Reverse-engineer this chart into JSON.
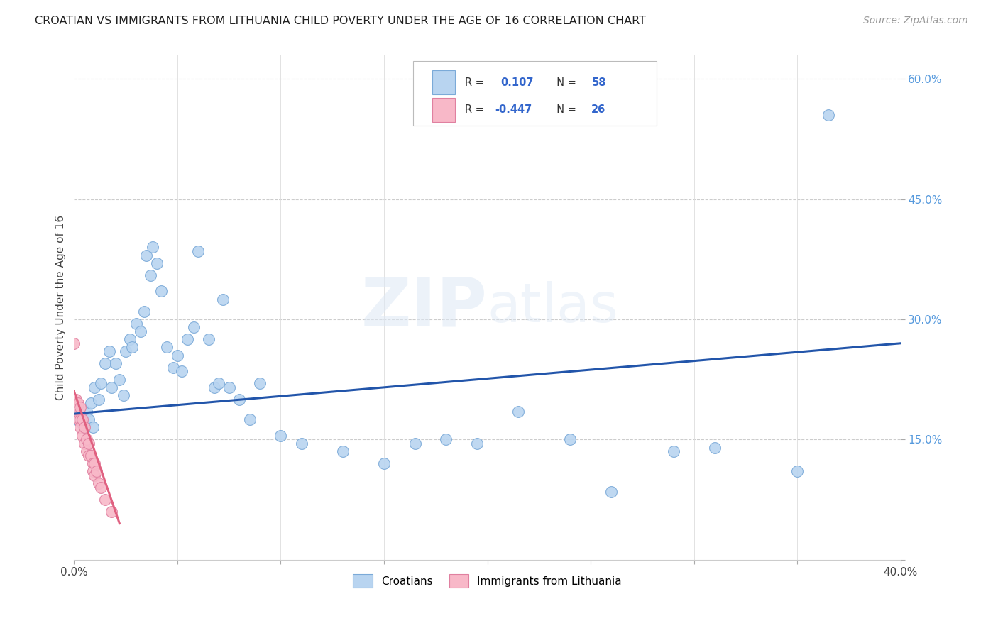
{
  "title": "CROATIAN VS IMMIGRANTS FROM LITHUANIA CHILD POVERTY UNDER THE AGE OF 16 CORRELATION CHART",
  "source": "Source: ZipAtlas.com",
  "ylabel": "Child Poverty Under the Age of 16",
  "legend_croatians": "Croatians",
  "legend_lithuania": "Immigrants from Lithuania",
  "r_croatians": "0.107",
  "n_croatians": "58",
  "r_lithuania": "-0.447",
  "n_lithuania": "26",
  "xmin": 0.0,
  "xmax": 0.4,
  "ymin": 0.0,
  "ymax": 0.63,
  "blue_scatter_color": "#b8d4f0",
  "blue_edge_color": "#7baad8",
  "pink_scatter_color": "#f8b8c8",
  "pink_edge_color": "#e080a0",
  "line_blue_color": "#2255aa",
  "line_pink_color": "#e06080",
  "croatians_x": [
    0.001,
    0.002,
    0.003,
    0.004,
    0.005,
    0.006,
    0.007,
    0.008,
    0.009,
    0.01,
    0.012,
    0.013,
    0.015,
    0.017,
    0.018,
    0.02,
    0.022,
    0.024,
    0.025,
    0.027,
    0.028,
    0.03,
    0.032,
    0.034,
    0.035,
    0.037,
    0.038,
    0.04,
    0.042,
    0.045,
    0.048,
    0.05,
    0.052,
    0.055,
    0.058,
    0.06,
    0.065,
    0.068,
    0.07,
    0.072,
    0.075,
    0.08,
    0.085,
    0.09,
    0.1,
    0.11,
    0.13,
    0.15,
    0.165,
    0.18,
    0.195,
    0.215,
    0.24,
    0.26,
    0.29,
    0.31,
    0.35,
    0.365
  ],
  "croatians_y": [
    0.175,
    0.19,
    0.18,
    0.17,
    0.165,
    0.185,
    0.175,
    0.195,
    0.165,
    0.215,
    0.2,
    0.22,
    0.245,
    0.26,
    0.215,
    0.245,
    0.225,
    0.205,
    0.26,
    0.275,
    0.265,
    0.295,
    0.285,
    0.31,
    0.38,
    0.355,
    0.39,
    0.37,
    0.335,
    0.265,
    0.24,
    0.255,
    0.235,
    0.275,
    0.29,
    0.385,
    0.275,
    0.215,
    0.22,
    0.325,
    0.215,
    0.2,
    0.175,
    0.22,
    0.155,
    0.145,
    0.135,
    0.12,
    0.145,
    0.15,
    0.145,
    0.185,
    0.15,
    0.085,
    0.135,
    0.14,
    0.11,
    0.555
  ],
  "lithuania_x": [
    0.0,
    0.001,
    0.001,
    0.002,
    0.002,
    0.003,
    0.003,
    0.003,
    0.004,
    0.004,
    0.005,
    0.005,
    0.006,
    0.006,
    0.007,
    0.007,
    0.008,
    0.009,
    0.009,
    0.01,
    0.01,
    0.011,
    0.012,
    0.013,
    0.015,
    0.018
  ],
  "lithuania_y": [
    0.27,
    0.2,
    0.185,
    0.195,
    0.175,
    0.19,
    0.175,
    0.165,
    0.175,
    0.155,
    0.165,
    0.145,
    0.15,
    0.135,
    0.145,
    0.13,
    0.13,
    0.12,
    0.11,
    0.12,
    0.105,
    0.11,
    0.095,
    0.09,
    0.075,
    0.06
  ],
  "line_blue_x0": 0.0,
  "line_blue_x1": 0.4,
  "line_blue_y0": 0.182,
  "line_blue_y1": 0.27,
  "line_pink_x0": 0.0,
  "line_pink_x1": 0.022,
  "line_pink_y0": 0.21,
  "line_pink_y1": 0.045
}
